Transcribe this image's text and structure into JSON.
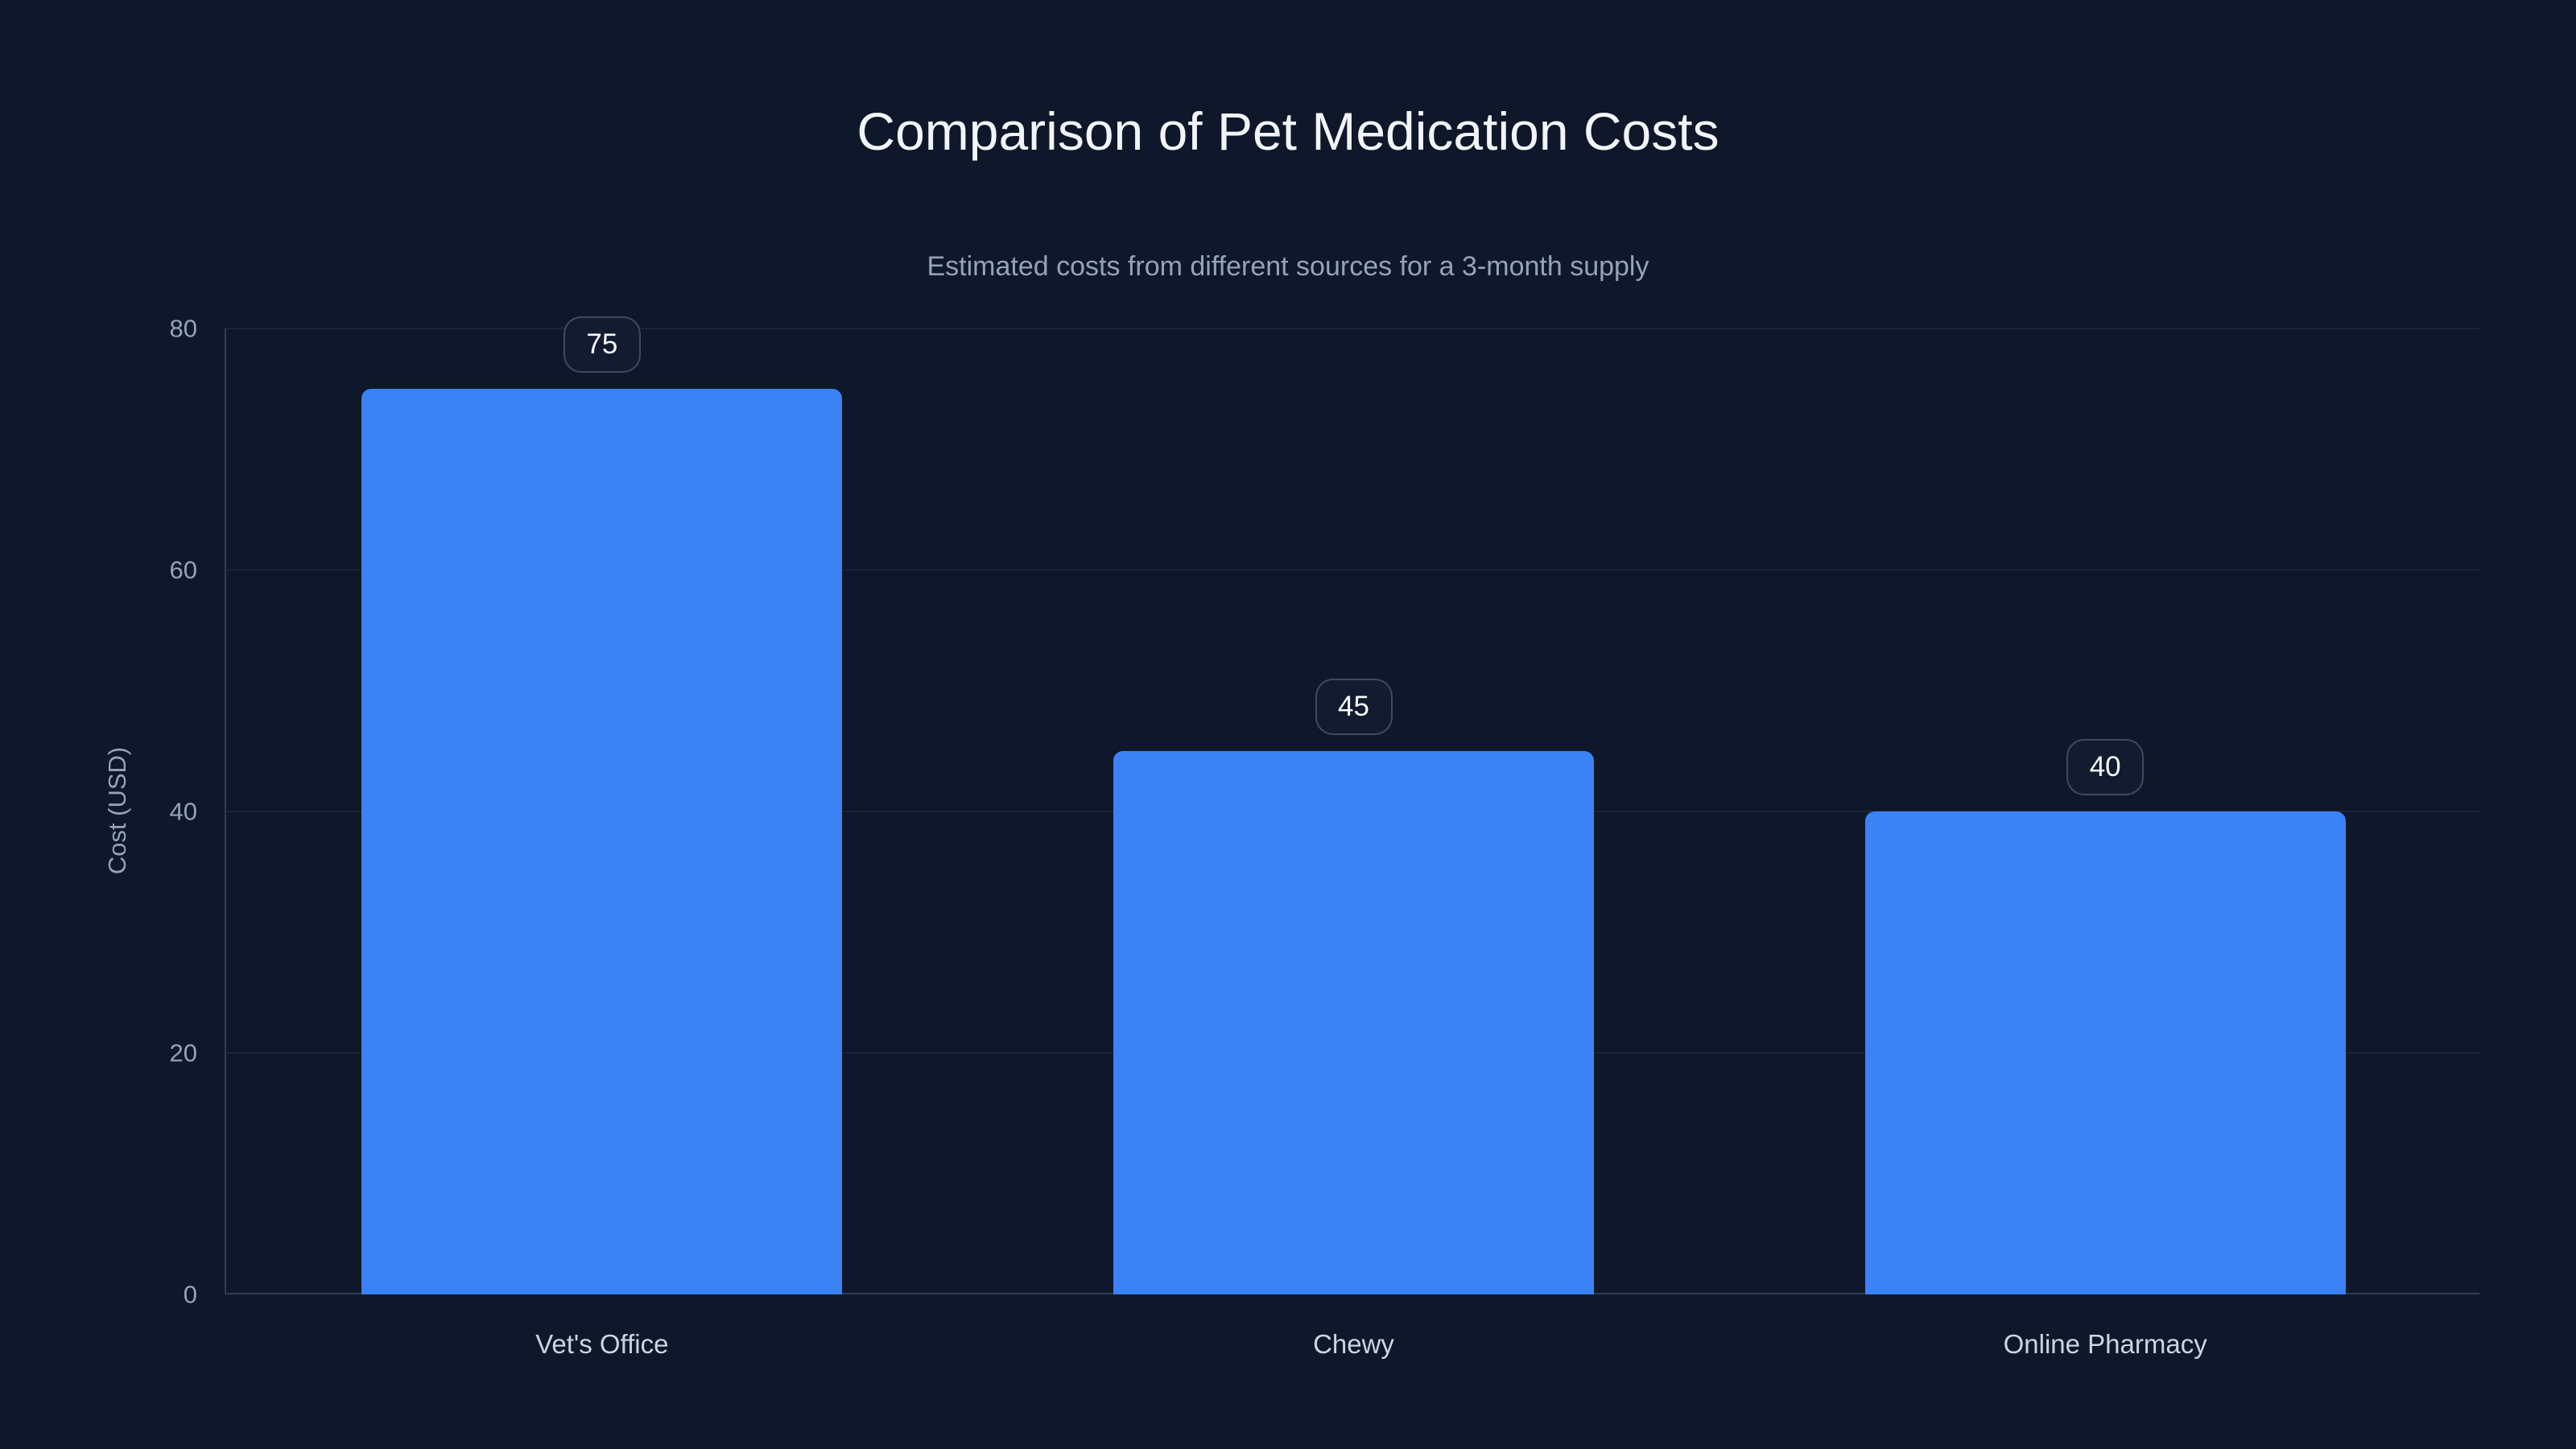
{
  "page": {
    "background": "#0f172a"
  },
  "colors": {
    "background": "#0f172a",
    "bar": "#3b82f6",
    "title": "#f1f5f9",
    "muted_text": "#94a3b8",
    "category_text": "#cbd5e1",
    "gridline": "rgba(148,163,184,0.10)",
    "axis_line": "rgba(148,163,184,0.28)",
    "badge_border": "rgba(148,163,184,0.35)",
    "badge_background": "#121b2f",
    "badge_text": "#f8fafc"
  },
  "chart_data": {
    "type": "bar",
    "title": "Comparison of Pet Medication Costs",
    "subtitle": "Estimated costs from different sources for a 3-month supply",
    "xlabel": "",
    "ylabel": "Cost (USD)",
    "categories": [
      "Vet's Office",
      "Chewy",
      "Online Pharmacy"
    ],
    "values": [
      75,
      45,
      40
    ],
    "value_badges": [
      "75",
      "45",
      "40"
    ],
    "ylim": [
      0,
      80
    ],
    "yticks": [
      0,
      20,
      40,
      60,
      80
    ],
    "grid": true,
    "legend_position": "none",
    "bar_color": "#3b82f6"
  }
}
